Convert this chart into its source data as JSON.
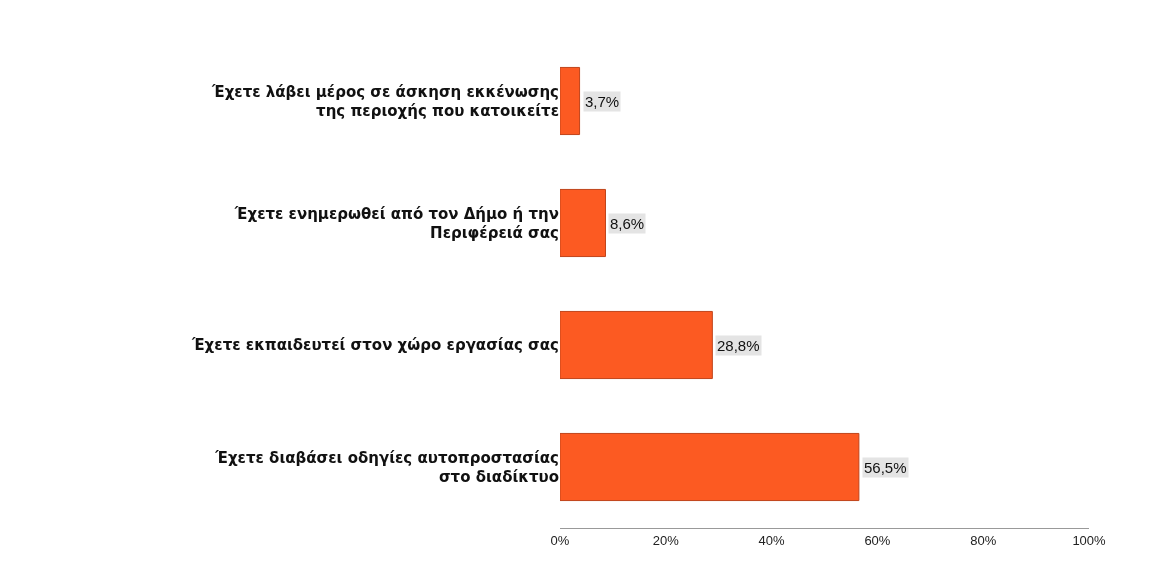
{
  "chart_data": {
    "type": "bar",
    "orientation": "horizontal",
    "categories": [
      "Έχετε λάβει μέρος σε άσκηση εκκένωσης της περιοχής που κατοικείτε",
      "Έχετε ενημερωθεί από τον Δήμο ή την Περιφέρειά σας",
      "Έχετε εκπαιδευτεί στον χώρο εργασίας σας",
      "Έχετε διαβάσει οδηγίες αυτοπροστασίας στο διαδίκτυο"
    ],
    "values": [
      3.7,
      8.6,
      28.8,
      56.5
    ],
    "value_labels": [
      "3,7%",
      "8,6%",
      "28,8%",
      "56,5%"
    ],
    "color": "#fc5a22",
    "xlim": [
      0,
      100
    ],
    "xticks": [
      {
        "value": 0,
        "label": "0%"
      },
      {
        "value": 20,
        "label": "20%"
      },
      {
        "value": 40,
        "label": "40%"
      },
      {
        "value": 60,
        "label": "60%"
      },
      {
        "value": 80,
        "label": "80%"
      },
      {
        "value": 100,
        "label": "100%"
      }
    ],
    "grid": false
  }
}
